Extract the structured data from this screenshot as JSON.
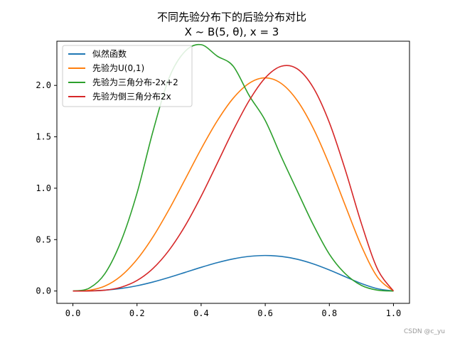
{
  "chart_data": {
    "type": "line",
    "title": "不同先验分布下的后验分布对比",
    "subtitle": "X ~ B(5, θ), x = 3",
    "xlabel": "",
    "ylabel": "",
    "xlim": [
      -0.05,
      1.05
    ],
    "ylim": [
      -0.12,
      2.43
    ],
    "x_ticks": [
      0.0,
      0.2,
      0.4,
      0.6,
      0.8,
      1.0
    ],
    "x_tick_labels": [
      "0.0",
      "0.2",
      "0.4",
      "0.6",
      "0.8",
      "1.0"
    ],
    "y_ticks": [
      0.0,
      0.5,
      1.0,
      1.5,
      2.0
    ],
    "y_tick_labels": [
      "0.0",
      "0.5",
      "1.0",
      "1.5",
      "2.0"
    ],
    "grid": false,
    "legend_position": "top-left",
    "x": [
      0.0,
      0.05,
      0.1,
      0.15,
      0.2,
      0.25,
      0.3,
      0.35,
      0.4,
      0.45,
      0.5,
      0.55,
      0.6,
      0.65,
      0.7,
      0.75,
      0.8,
      0.85,
      0.9,
      0.95,
      1.0
    ],
    "series": [
      {
        "name": "似然函数",
        "color": "#1f77b4",
        "values": [
          0.0,
          0.0012,
          0.0081,
          0.0244,
          0.0512,
          0.0879,
          0.1323,
          0.181,
          0.2304,
          0.2757,
          0.3125,
          0.3369,
          0.3456,
          0.3364,
          0.3087,
          0.2637,
          0.2048,
          0.1382,
          0.0729,
          0.0226,
          0.0
        ]
      },
      {
        "name": "先验为U(0,1)",
        "color": "#ff7f0e",
        "values": [
          0.0,
          0.0071,
          0.0486,
          0.1463,
          0.3072,
          0.5273,
          0.7938,
          1.0862,
          1.3824,
          1.6538,
          1.875,
          2.0213,
          2.0736,
          2.0188,
          1.8522,
          1.582,
          1.2288,
          0.8289,
          0.4374,
          0.1354,
          0.0
        ]
      },
      {
        "name": "先验为三角分布-2x+2",
        "color": "#2ca02c",
        "values": [
          0.0,
          0.0266,
          0.1701,
          0.4831,
          0.9523,
          1.5557,
          2.0719,
          2.3315,
          2.3962,
          2.2856,
          2.1875,
          1.9009,
          1.6589,
          1.3066,
          0.9729,
          0.6434,
          0.3584,
          0.1673,
          0.0544,
          0.0081,
          0.0
        ],
        "values_note": ""
      },
      {
        "name": "先验为倒三角分布2x",
        "color": "#d62728",
        "values": [
          0.0,
          0.0006,
          0.0081,
          0.0366,
          0.1024,
          0.2197,
          0.3969,
          0.6336,
          0.9216,
          1.2407,
          1.5625,
          1.8531,
          2.0736,
          2.1866,
          2.1609,
          1.9775,
          1.6384,
          1.1748,
          0.6561,
          0.2144,
          0.0
        ]
      }
    ]
  },
  "watermark": "CSDN @c_yu"
}
